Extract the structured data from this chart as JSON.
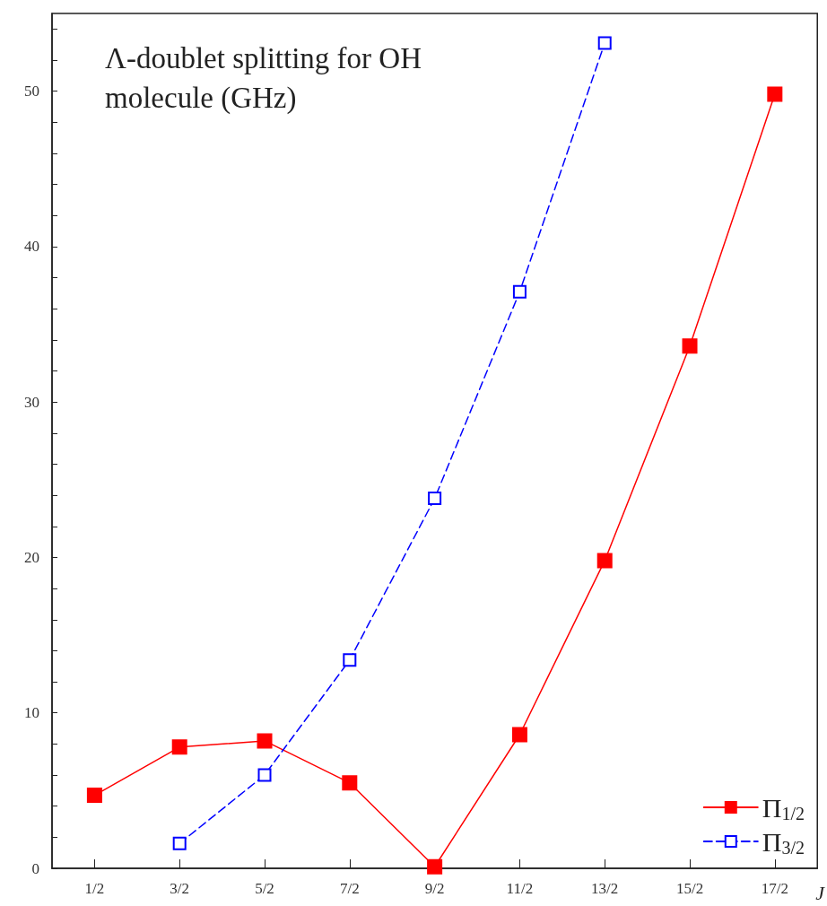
{
  "chart_data": {
    "type": "line",
    "title": "Λ-doublet splitting for OH molecule (GHz)",
    "xlabel": "J",
    "x": [
      0.5,
      1.5,
      2.5,
      3.5,
      4.5,
      5.5,
      6.5,
      7.5,
      8.5
    ],
    "series": [
      {
        "name": "Π$_{1/2}$",
        "color": "#ff0000",
        "marker": "square",
        "line_style": "solid",
        "values": [
          4.7,
          7.8,
          8.2,
          5.5,
          0.1,
          8.6,
          19.8,
          33.6,
          49.8
        ]
      },
      {
        "name": "Π$_{3/2}$",
        "color": "#0000ff",
        "marker": "square-open",
        "line_style": "dashed",
        "values": [
          null,
          1.6,
          6.0,
          13.4,
          23.8,
          37.1,
          53.1,
          null,
          null
        ]
      }
    ],
    "xlim": [
      0,
      9
    ],
    "xticks": [
      {
        "value": 0.5,
        "label": "1/2"
      },
      {
        "value": 1.5,
        "label": "3/2"
      },
      {
        "value": 2.5,
        "label": "5/2"
      },
      {
        "value": 3.5,
        "label": "7/2"
      },
      {
        "value": 4.5,
        "label": "9/2"
      },
      {
        "value": 5.5,
        "label": "11/2"
      },
      {
        "value": 6.5,
        "label": "13/2"
      },
      {
        "value": 7.5,
        "label": "15/2"
      },
      {
        "value": 8.5,
        "label": "17/2"
      }
    ],
    "ylim": [
      0,
      55
    ],
    "yticks": [
      0,
      {
        "value": 2,
        "label": null
      },
      {
        "value": 4,
        "label": null
      },
      {
        "value": 6,
        "label": null
      },
      {
        "value": 8,
        "label": null
      },
      10,
      {
        "value": 12,
        "label": null
      },
      {
        "value": 14,
        "label": null
      },
      {
        "value": 16,
        "label": null
      },
      {
        "value": 18,
        "label": null
      },
      20,
      {
        "value": 22,
        "label": null
      },
      {
        "value": 24,
        "label": null
      },
      {
        "value": 26,
        "label": null
      },
      {
        "value": 28,
        "label": null
      },
      30,
      {
        "value": 32,
        "label": null
      },
      {
        "value": 34,
        "label": null
      },
      {
        "value": 36,
        "label": null
      },
      {
        "value": 38,
        "label": null
      },
      40,
      {
        "value": 42,
        "label": null
      },
      {
        "value": 44,
        "label": null
      },
      {
        "value": 46,
        "label": null
      },
      {
        "value": 48,
        "label": null
      },
      50,
      {
        "value": 52,
        "label": null
      },
      {
        "value": 54,
        "label": null
      }
    ],
    "grid": false,
    "legend": "bottom right"
  }
}
